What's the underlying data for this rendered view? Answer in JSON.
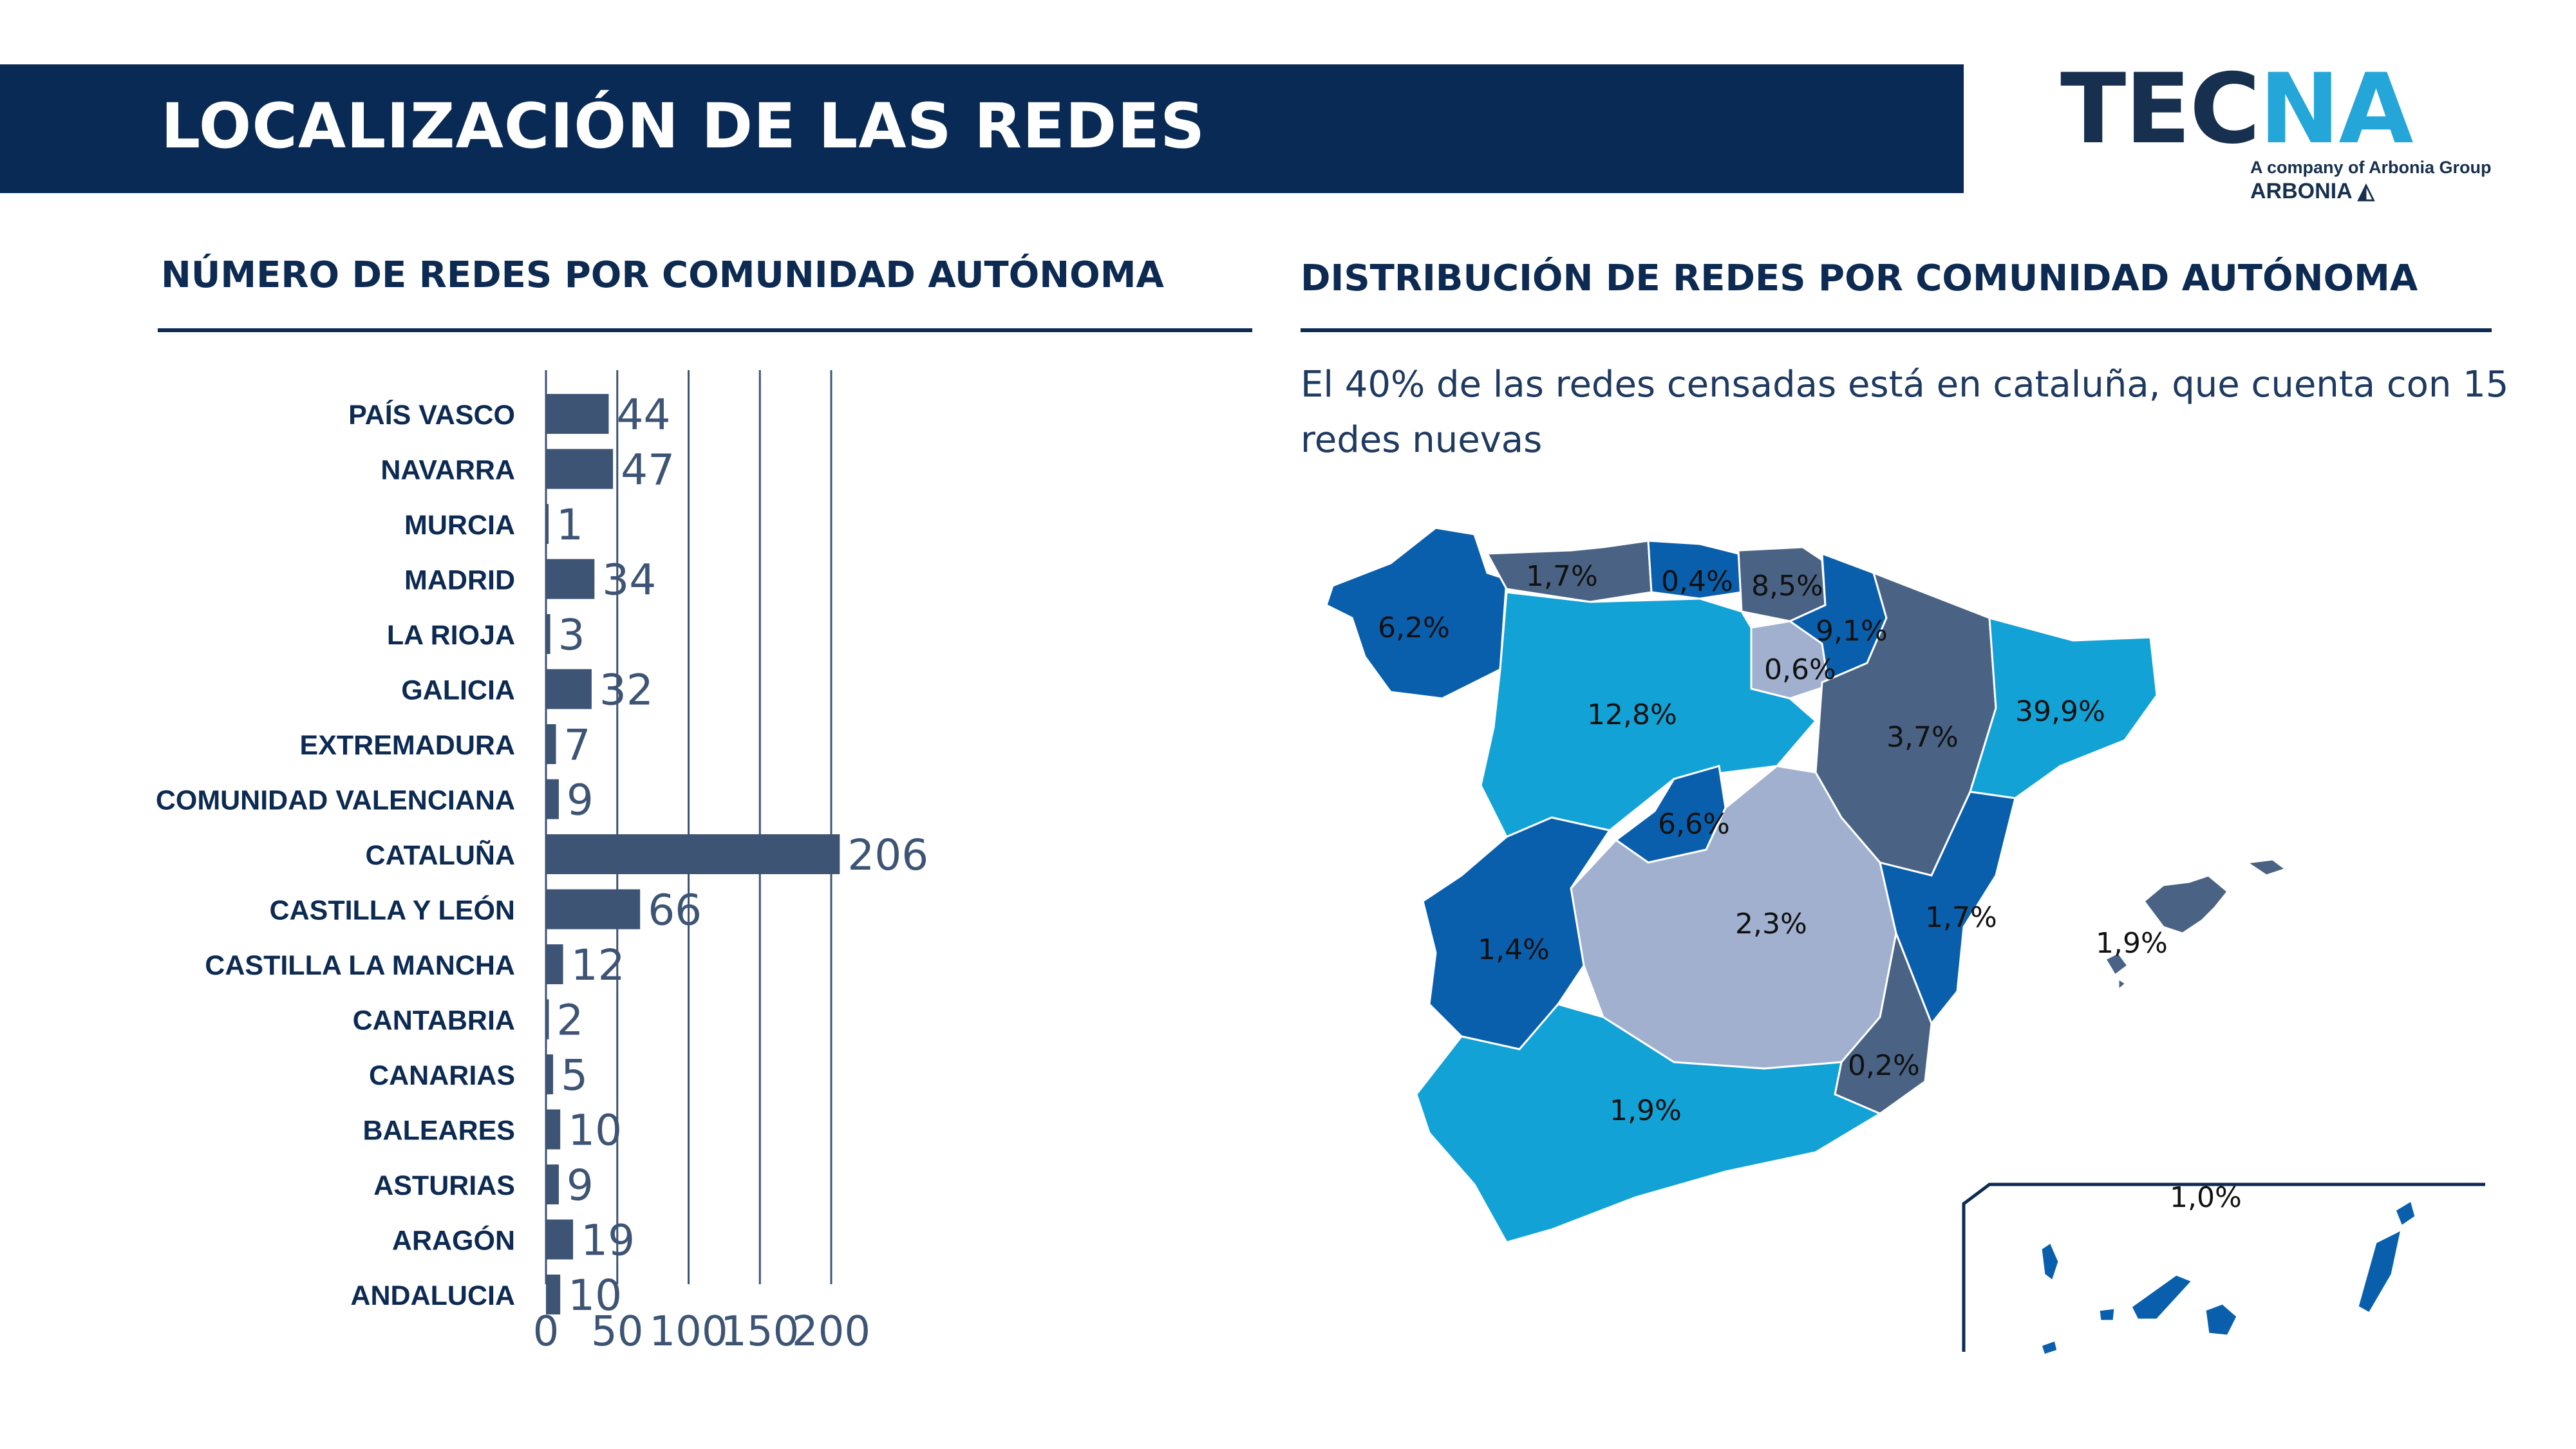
{
  "header": {
    "title": "LOCALIZACIÓN DE LAS REDES"
  },
  "logo": {
    "word_dark": "TEC",
    "word_light": "NA",
    "subtitle": "A company of Arbonia Group",
    "group": "ARBONIA"
  },
  "left_section": {
    "title": "NÚMERO DE REDES POR COMUNIDAD AUTÓNOMA"
  },
  "right_section": {
    "title": "DISTRIBUCIÓN DE REDES POR COMUNIDAD AUTÓNOMA",
    "subtitle": "El 40% de las redes censadas está en cataluña, que cuenta con 15 redes nuevas"
  },
  "chart_data": {
    "type": "bar",
    "orientation": "horizontal",
    "categories": [
      "PAÍS VASCO",
      "NAVARRA",
      "MURCIA",
      "MADRID",
      "LA RIOJA",
      "GALICIA",
      "EXTREMADURA",
      "COMUNIDAD VALENCIANA",
      "CATALUÑA",
      "CASTILLA Y LEÓN",
      "CASTILLA LA MANCHA",
      "CANTABRIA",
      "CANARIAS",
      "BALEARES",
      "ASTURIAS",
      "ARAGÓN",
      "ANDALUCIA"
    ],
    "values": [
      44,
      47,
      1,
      34,
      3,
      32,
      7,
      9,
      206,
      66,
      12,
      2,
      5,
      10,
      9,
      19,
      10
    ],
    "xlim": [
      0,
      200
    ],
    "xticks": [
      0,
      50,
      100,
      150,
      200
    ],
    "grid": true,
    "bar_color": "#3d5475"
  },
  "map": {
    "regions": [
      {
        "name": "Galicia",
        "label": "6,2%",
        "color": "#0a5fad"
      },
      {
        "name": "Asturias",
        "label": "1,7%",
        "color": "#4a6384"
      },
      {
        "name": "Cantabria",
        "label": "0,4%",
        "color": "#0a5fad"
      },
      {
        "name": "País Vasco",
        "label": "8,5%",
        "color": "#4a6384"
      },
      {
        "name": "Navarra",
        "label": "9,1%",
        "color": "#0a5fad"
      },
      {
        "name": "La Rioja",
        "label": "0,6%",
        "color": "#a0b0ce"
      },
      {
        "name": "Castilla y León",
        "label": "12,8%",
        "color": "#12a2d6"
      },
      {
        "name": "Aragón",
        "label": "3,7%",
        "color": "#4a6384"
      },
      {
        "name": "Cataluña",
        "label": "39,9%",
        "color": "#12a2d6"
      },
      {
        "name": "Madrid",
        "label": "6,6%",
        "color": "#0a5fad"
      },
      {
        "name": "Castilla La Mancha",
        "label": "2,3%",
        "color": "#a0b0ce"
      },
      {
        "name": "Comunidad Valenciana",
        "label": "1,7%",
        "color": "#0a5fad"
      },
      {
        "name": "Extremadura",
        "label": "1,4%",
        "color": "#0a5fad"
      },
      {
        "name": "Murcia",
        "label": "0,2%",
        "color": "#4a6384"
      },
      {
        "name": "Andalucia",
        "label": "1,9%",
        "color": "#12a2d6"
      },
      {
        "name": "Baleares",
        "label": "1,9%",
        "color": "#4a6384"
      },
      {
        "name": "Canarias",
        "label": "1,0%",
        "color": "#0a5fad"
      }
    ],
    "inset_border_color": "#0c2a52"
  }
}
